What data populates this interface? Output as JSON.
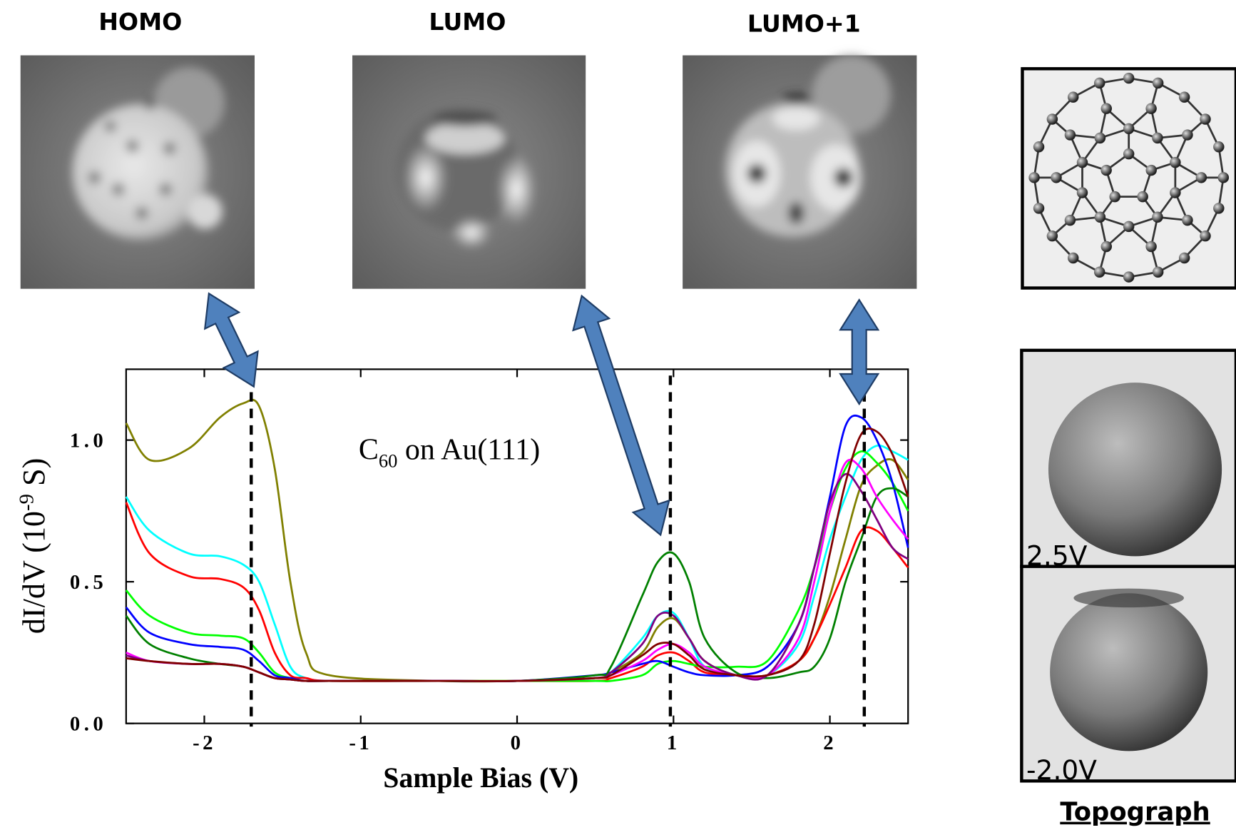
{
  "header": {
    "titles": [
      "HOMO",
      "LUMO",
      "LUMO+1"
    ]
  },
  "chart_data": {
    "type": "line",
    "x_label": "Sample Bias (V)",
    "y_label": {
      "prefix": "dI/dV (10",
      "superscript": "-9",
      "suffix": " S)"
    },
    "annotation": {
      "base": "C",
      "subscript": "60",
      "suffix": " on Au(111)"
    },
    "x": [
      -2.5,
      -2.35,
      -2.1,
      -1.9,
      -1.75,
      -1.65,
      -1.55,
      -1.45,
      -1.35,
      -1.2,
      -0.5,
      0,
      0.5,
      0.6,
      0.8,
      0.9,
      1.0,
      1.1,
      1.2,
      1.4,
      1.6,
      1.8,
      1.9,
      2.0,
      2.1,
      2.2,
      2.3,
      2.4,
      2.5
    ],
    "series": [
      {
        "color": "#808000",
        "values": [
          1.06,
          0.93,
          0.97,
          1.08,
          1.13,
          1.12,
          0.9,
          0.5,
          0.25,
          0.17,
          0.15,
          0.15,
          0.16,
          0.18,
          0.25,
          0.34,
          0.37,
          0.3,
          0.22,
          0.17,
          0.17,
          0.22,
          0.3,
          0.45,
          0.65,
          0.84,
          0.91,
          0.93,
          0.86
        ]
      },
      {
        "color": "#00ffff",
        "values": [
          0.8,
          0.68,
          0.6,
          0.59,
          0.56,
          0.5,
          0.35,
          0.2,
          0.16,
          0.15,
          0.15,
          0.15,
          0.16,
          0.18,
          0.3,
          0.38,
          0.39,
          0.3,
          0.2,
          0.17,
          0.17,
          0.28,
          0.45,
          0.65,
          0.8,
          0.93,
          0.98,
          0.96,
          0.93
        ]
      },
      {
        "color": "#ff0000",
        "values": [
          0.78,
          0.6,
          0.52,
          0.51,
          0.48,
          0.4,
          0.25,
          0.17,
          0.16,
          0.15,
          0.15,
          0.15,
          0.15,
          0.16,
          0.2,
          0.24,
          0.25,
          0.22,
          0.18,
          0.17,
          0.17,
          0.22,
          0.3,
          0.42,
          0.55,
          0.68,
          0.68,
          0.62,
          0.55
        ]
      },
      {
        "color": "#00ff00",
        "values": [
          0.47,
          0.38,
          0.32,
          0.31,
          0.3,
          0.25,
          0.18,
          0.16,
          0.15,
          0.15,
          0.15,
          0.15,
          0.15,
          0.15,
          0.17,
          0.21,
          0.22,
          0.21,
          0.2,
          0.2,
          0.22,
          0.4,
          0.55,
          0.75,
          0.9,
          0.96,
          0.92,
          0.85,
          0.75
        ]
      },
      {
        "color": "#0000ff",
        "values": [
          0.41,
          0.32,
          0.28,
          0.27,
          0.26,
          0.22,
          0.17,
          0.16,
          0.15,
          0.15,
          0.15,
          0.15,
          0.17,
          0.18,
          0.21,
          0.22,
          0.2,
          0.18,
          0.17,
          0.17,
          0.2,
          0.35,
          0.55,
          0.8,
          1.05,
          1.08,
          1.0,
          0.85,
          0.62
        ]
      },
      {
        "color": "#008000",
        "values": [
          0.38,
          0.28,
          0.23,
          0.21,
          0.2,
          0.18,
          0.16,
          0.155,
          0.15,
          0.15,
          0.15,
          0.15,
          0.17,
          0.2,
          0.45,
          0.57,
          0.6,
          0.5,
          0.3,
          0.18,
          0.16,
          0.18,
          0.2,
          0.3,
          0.5,
          0.65,
          0.8,
          0.83,
          0.8
        ]
      },
      {
        "color": "#ff00ff",
        "values": [
          0.25,
          0.22,
          0.21,
          0.21,
          0.2,
          0.18,
          0.16,
          0.155,
          0.15,
          0.15,
          0.15,
          0.15,
          0.16,
          0.17,
          0.22,
          0.26,
          0.28,
          0.25,
          0.2,
          0.17,
          0.17,
          0.3,
          0.5,
          0.75,
          0.92,
          0.9,
          0.8,
          0.72,
          0.65
        ]
      },
      {
        "color": "#800080",
        "values": [
          0.24,
          0.22,
          0.21,
          0.21,
          0.2,
          0.18,
          0.16,
          0.155,
          0.15,
          0.15,
          0.15,
          0.15,
          0.16,
          0.18,
          0.28,
          0.38,
          0.38,
          0.3,
          0.22,
          0.17,
          0.17,
          0.35,
          0.55,
          0.78,
          0.88,
          0.82,
          0.72,
          0.62,
          0.58
        ]
      },
      {
        "color": "#800000",
        "values": [
          0.23,
          0.22,
          0.21,
          0.21,
          0.2,
          0.18,
          0.16,
          0.155,
          0.15,
          0.15,
          0.15,
          0.15,
          0.16,
          0.17,
          0.24,
          0.28,
          0.28,
          0.24,
          0.19,
          0.17,
          0.17,
          0.22,
          0.35,
          0.6,
          0.85,
          1.02,
          1.03,
          0.95,
          0.8
        ]
      }
    ],
    "xlim": [
      -2.5,
      2.5
    ],
    "ylim": [
      0,
      1.25
    ],
    "xticks": [
      -2,
      -1,
      0,
      1,
      2
    ],
    "yticks": [
      {
        "value": 0,
        "label": "0.0"
      },
      0.5,
      {
        "value": 1,
        "label": "1.0"
      }
    ],
    "reference_lines_x": [
      -1.7,
      0.98,
      2.22
    ]
  },
  "topograph": {
    "labels": [
      "2.5V",
      "-2.0V"
    ],
    "title": "Topograph"
  }
}
